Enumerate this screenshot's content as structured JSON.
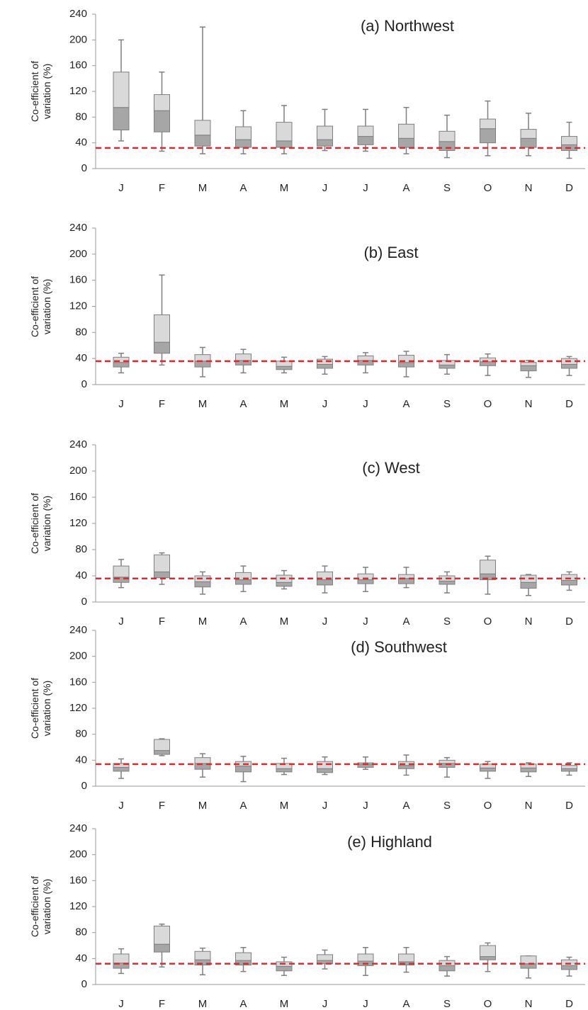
{
  "chart_data": [
    {
      "type": "box",
      "title": "(a) Northwest",
      "ylabel": "Co-efficient of variation (%)",
      "categories": [
        "J",
        "F",
        "M",
        "A",
        "M",
        "J",
        "J",
        "A",
        "S",
        "O",
        "N",
        "D"
      ],
      "min": [
        43,
        27,
        23,
        23,
        23,
        28,
        27,
        23,
        17,
        20,
        20,
        16
      ],
      "q1": [
        60,
        57,
        35,
        33,
        33,
        35,
        37,
        33,
        28,
        40,
        33,
        28
      ],
      "median": [
        95,
        90,
        52,
        45,
        43,
        45,
        50,
        47,
        42,
        62,
        47,
        37
      ],
      "q3": [
        150,
        115,
        75,
        65,
        72,
        66,
        66,
        69,
        58,
        77,
        61,
        50
      ],
      "max": [
        200,
        150,
        220,
        90,
        98,
        92,
        92,
        95,
        83,
        105,
        86,
        72
      ],
      "reference_line": {
        "value": 32,
        "color": "#e8262a"
      },
      "lower_box_color": "#a6a6a6",
      "upper_box_color": "#d9d9d9",
      "whisker_color": "#7f7f7f",
      "ylim": [
        0,
        240
      ],
      "yticks": [
        0,
        40,
        80,
        120,
        160,
        200,
        240
      ]
    },
    {
      "type": "box",
      "title": "(b) East",
      "ylabel": "Co-efficient of variation (%)",
      "categories": [
        "J",
        "F",
        "M",
        "A",
        "M",
        "J",
        "J",
        "A",
        "S",
        "O",
        "N",
        "D"
      ],
      "min": [
        18,
        30,
        12,
        18,
        18,
        16,
        18,
        12,
        16,
        14,
        11,
        14
      ],
      "q1": [
        27,
        48,
        27,
        30,
        23,
        25,
        30,
        27,
        25,
        29,
        21,
        25
      ],
      "median": [
        34,
        65,
        36,
        37,
        28,
        31,
        37,
        34,
        30,
        35,
        29,
        31
      ],
      "q3": [
        42,
        107,
        46,
        47,
        36,
        39,
        44,
        45,
        37,
        41,
        34,
        40
      ],
      "max": [
        48,
        168,
        57,
        54,
        42,
        43,
        49,
        51,
        46,
        47,
        37,
        43
      ],
      "reference_line": {
        "value": 36,
        "color": "#e8262a"
      },
      "lower_box_color": "#a6a6a6",
      "upper_box_color": "#d9d9d9",
      "whisker_color": "#7f7f7f",
      "ylim": [
        0,
        240
      ],
      "yticks": [
        0,
        40,
        80,
        120,
        160,
        200,
        240
      ]
    },
    {
      "type": "box",
      "title": "(c) West",
      "ylabel": "Co-efficient of variation (%)",
      "categories": [
        "J",
        "F",
        "M",
        "A",
        "M",
        "J",
        "J",
        "A",
        "S",
        "O",
        "N",
        "D"
      ],
      "min": [
        22,
        27,
        12,
        16,
        20,
        14,
        16,
        22,
        14,
        12,
        10,
        18
      ],
      "q1": [
        30,
        37,
        23,
        27,
        24,
        26,
        28,
        28,
        27,
        34,
        21,
        26
      ],
      "median": [
        38,
        46,
        31,
        34,
        30,
        34,
        34,
        36,
        32,
        43,
        30,
        33
      ],
      "q3": [
        55,
        72,
        40,
        45,
        41,
        46,
        43,
        42,
        40,
        64,
        41,
        42
      ],
      "max": [
        65,
        75,
        46,
        55,
        48,
        55,
        53,
        53,
        46,
        70,
        42,
        46
      ],
      "reference_line": {
        "value": 36,
        "color": "#e8262a"
      },
      "lower_box_color": "#a6a6a6",
      "upper_box_color": "#d9d9d9",
      "whisker_color": "#7f7f7f",
      "ylim": [
        0,
        240
      ],
      "yticks": [
        0,
        40,
        80,
        120,
        160,
        200,
        240
      ]
    },
    {
      "type": "box",
      "title": "(d) Southwest",
      "ylabel": "Co-efficient of variation (%)",
      "categories": [
        "J",
        "F",
        "M",
        "A",
        "M",
        "J",
        "J",
        "A",
        "S",
        "O",
        "N",
        "D"
      ],
      "min": [
        12,
        47,
        14,
        7,
        18,
        18,
        26,
        17,
        14,
        12,
        15,
        17
      ],
      "q1": [
        23,
        49,
        26,
        22,
        22,
        21,
        29,
        27,
        29,
        23,
        22,
        23
      ],
      "median": [
        29,
        55,
        35,
        31,
        27,
        27,
        34,
        32,
        35,
        28,
        28,
        27
      ],
      "q3": [
        35,
        72,
        44,
        38,
        35,
        38,
        36,
        38,
        40,
        34,
        34,
        32
      ],
      "max": [
        42,
        73,
        50,
        46,
        43,
        45,
        45,
        48,
        44,
        38,
        36,
        36
      ],
      "reference_line": {
        "value": 34,
        "color": "#e8262a"
      },
      "lower_box_color": "#a6a6a6",
      "upper_box_color": "#d9d9d9",
      "whisker_color": "#7f7f7f",
      "ylim": [
        0,
        240
      ],
      "yticks": [
        0,
        40,
        80,
        120,
        160,
        200,
        240
      ]
    },
    {
      "type": "box",
      "title": "(e) Highland",
      "ylabel": "Co-efficient of variation (%)",
      "categories": [
        "J",
        "F",
        "M",
        "A",
        "M",
        "J",
        "J",
        "A",
        "S",
        "O",
        "N",
        "D"
      ],
      "min": [
        17,
        27,
        15,
        20,
        14,
        24,
        14,
        19,
        13,
        20,
        10,
        13
      ],
      "q1": [
        25,
        50,
        30,
        30,
        21,
        32,
        29,
        30,
        21,
        38,
        25,
        23
      ],
      "median": [
        33,
        62,
        38,
        37,
        28,
        37,
        36,
        35,
        29,
        43,
        32,
        29
      ],
      "q3": [
        47,
        90,
        51,
        49,
        35,
        46,
        47,
        47,
        37,
        60,
        44,
        38
      ],
      "max": [
        55,
        93,
        56,
        57,
        42,
        53,
        57,
        57,
        43,
        64,
        44,
        42
      ],
      "reference_line": {
        "value": 32,
        "color": "#e8262a"
      },
      "lower_box_color": "#a6a6a6",
      "upper_box_color": "#d9d9d9",
      "whisker_color": "#7f7f7f",
      "ylim": [
        0,
        240
      ],
      "yticks": [
        0,
        40,
        80,
        120,
        160,
        200,
        240
      ]
    }
  ]
}
